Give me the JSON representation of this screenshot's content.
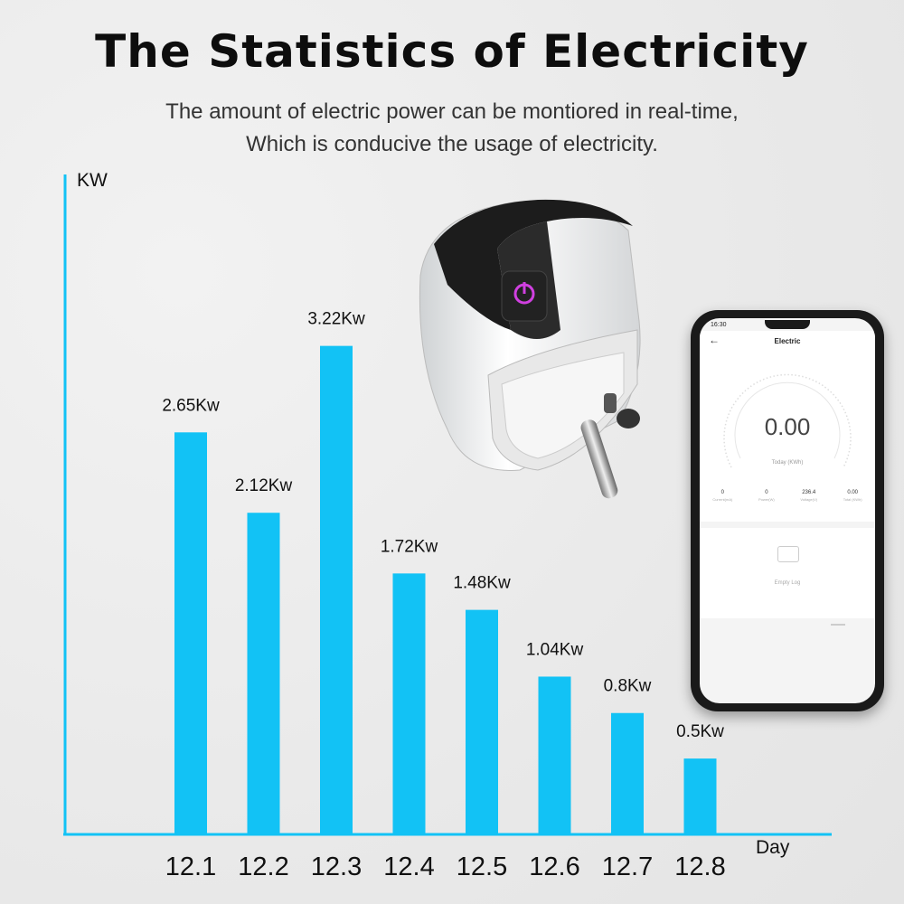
{
  "header": {
    "title": "The Statistics of Electricity",
    "subtitle_line1": "The amount of electric power can be montiored in real-time,",
    "subtitle_line2": "Which is conducive the usage of electricity."
  },
  "chart_data": {
    "type": "bar",
    "ylabel": "KW",
    "xlabel": "Day",
    "categories": [
      "12.1",
      "12.2",
      "12.3",
      "12.4",
      "12.5",
      "12.6",
      "12.7",
      "12.8"
    ],
    "values": [
      2.65,
      2.12,
      3.22,
      1.72,
      1.48,
      1.04,
      0.8,
      0.5
    ],
    "data_labels": [
      "2.65Kw",
      "2.12Kw",
      "3.22Kw",
      "1.72Kw",
      "1.48Kw",
      "1.04Kw",
      "0.8Kw",
      "0.5Kw"
    ],
    "ylim": [
      0,
      4.35
    ],
    "grid": false,
    "bar_color": "#12c2f5"
  },
  "phone": {
    "status_time": "16:30",
    "screen_title": "Electric",
    "value": "0.00",
    "value_label": "Today (KWh)",
    "stats": [
      {
        "value": "0",
        "label": "Current(mA)"
      },
      {
        "value": "0",
        "label": "Power(W)"
      },
      {
        "value": "236.4",
        "label": "Voltage(V)"
      },
      {
        "value": "0.00",
        "label": "Total (KWh)"
      }
    ],
    "empty_log": "Empty Log"
  },
  "icons": {
    "plug": "smart-plug-icon",
    "power": "power-icon",
    "back": "back-arrow-icon",
    "tray": "empty-tray-icon"
  }
}
